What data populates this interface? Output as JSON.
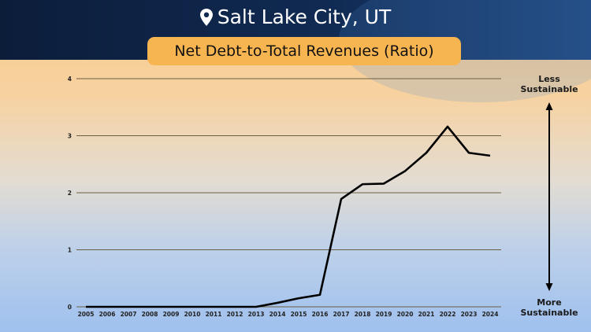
{
  "header": {
    "location": "Salt Lake City, UT",
    "location_icon": "map-pin-icon"
  },
  "colors": {
    "header_bg": "#0c1d3a",
    "subtitle_bg": "#f7b552",
    "line": "#000000",
    "grid": "#6b5e43"
  },
  "scale": {
    "top_label": "Less\nSustainable",
    "bottom_label": "More\nSustainable",
    "arrow_icon": "double-arrow-vertical-icon"
  },
  "chart_data": {
    "type": "line",
    "title": "Net Debt-to-Total Revenues (Ratio)",
    "xlabel": "",
    "ylabel": "",
    "x": [
      "2005",
      "2006",
      "2007",
      "2008",
      "2009",
      "2010",
      "2011",
      "2012",
      "2013",
      "2014",
      "2015",
      "2016",
      "2017",
      "2018",
      "2019",
      "2020",
      "2021",
      "2022",
      "2023",
      "2024"
    ],
    "series": [
      {
        "values": [
          0,
          0,
          0,
          0,
          0,
          0,
          0,
          0,
          0,
          0.07,
          0.15,
          0.21,
          1.89,
          2.15,
          2.16,
          2.38,
          2.7,
          3.16,
          2.7,
          2.65
        ]
      }
    ],
    "yticks": [
      0,
      1,
      2,
      3,
      4
    ],
    "ylim": [
      0,
      4
    ],
    "grid": true,
    "legend": "none"
  }
}
